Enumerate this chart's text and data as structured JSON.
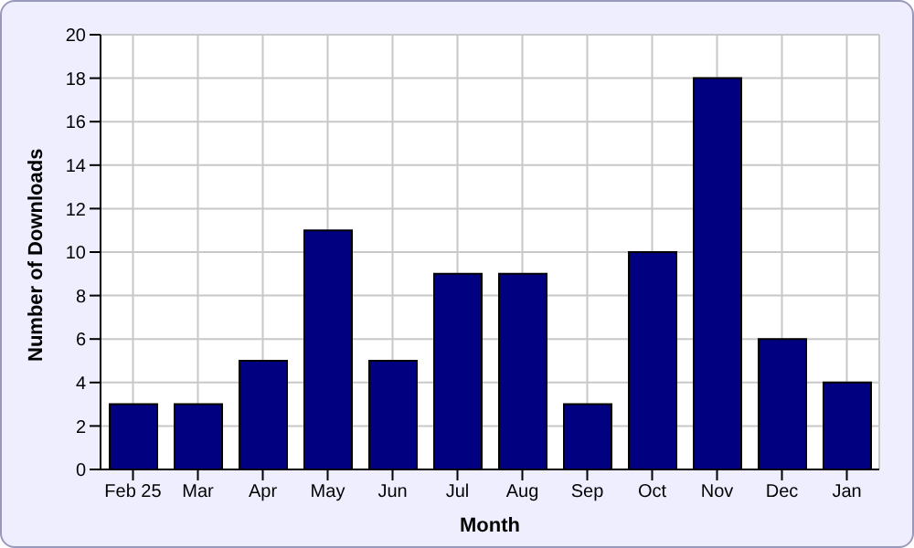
{
  "chart_data": {
    "type": "bar",
    "xlabel": "Month",
    "ylabel": "Number of Downloads",
    "categories": [
      "Feb 25",
      "Mar",
      "Apr",
      "May",
      "Jun",
      "Jul",
      "Aug",
      "Sep",
      "Oct",
      "Nov",
      "Dec",
      "Jan"
    ],
    "values": [
      3,
      3,
      5,
      11,
      5,
      9,
      9,
      3,
      10,
      18,
      6,
      4
    ],
    "color": "#000080",
    "ylim": [
      0,
      20
    ],
    "yticks": [
      0,
      2,
      4,
      6,
      8,
      10,
      12,
      14,
      16,
      18,
      20
    ],
    "grid": true
  }
}
